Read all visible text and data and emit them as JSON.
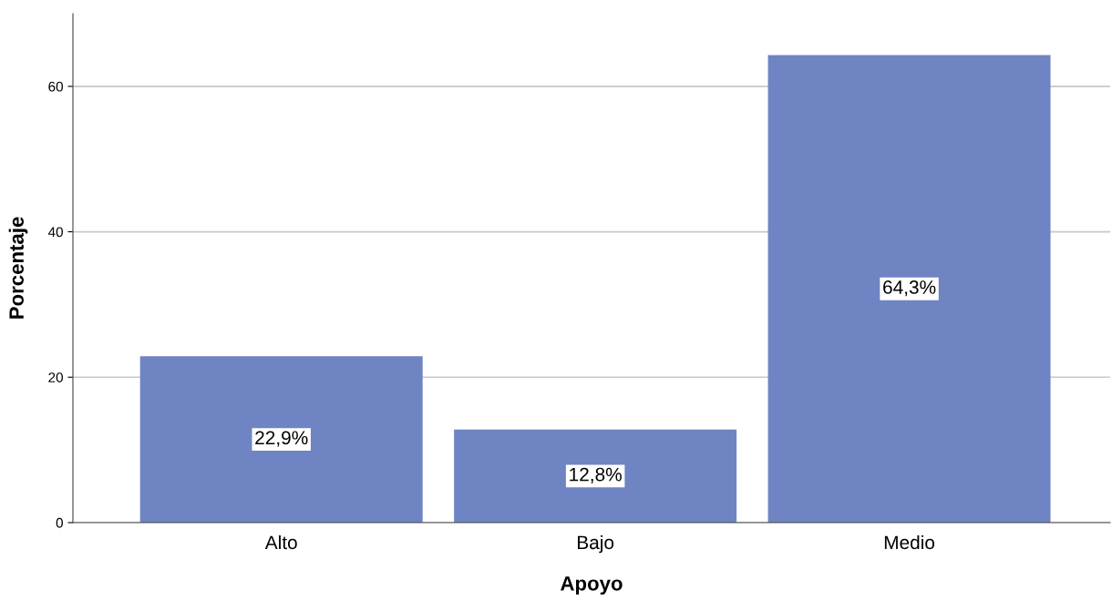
{
  "chart_data": {
    "type": "bar",
    "xlabel": "Apoyo",
    "ylabel": "Porcentaje",
    "categories": [
      "Alto",
      "Bajo",
      "Medio"
    ],
    "values": [
      22.9,
      12.8,
      64.3
    ],
    "value_labels": [
      "22,9%",
      "12,8%",
      "64,3%"
    ],
    "color": "#6f84c2",
    "ylim": [
      0,
      70
    ],
    "yticks": [
      0,
      20,
      40,
      60
    ],
    "grid": "y",
    "legend": false
  }
}
